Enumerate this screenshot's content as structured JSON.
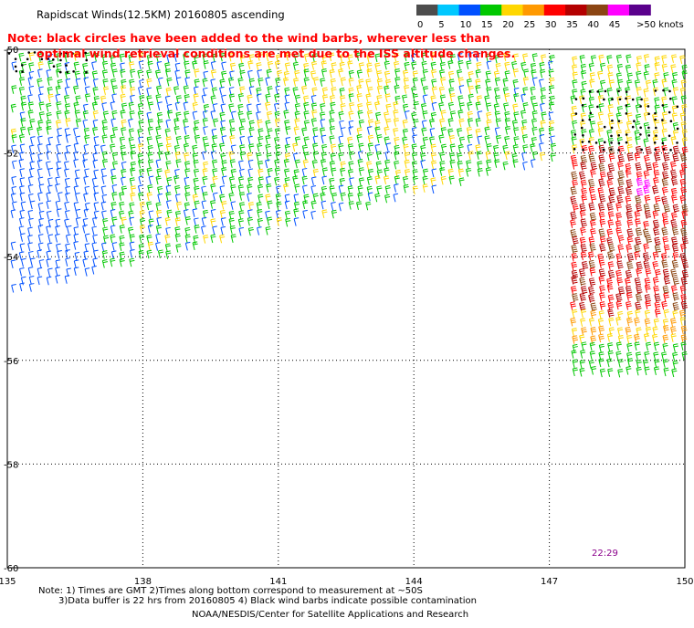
{
  "header": {
    "title": "Rapidscat Winds(12.5KM) 20160805 ascending",
    "color_scale": {
      "labels": [
        "0",
        "5",
        "10",
        "15",
        "20",
        "25",
        "30",
        "35",
        "40",
        "45",
        ">50 knots"
      ],
      "colors": [
        "#4d4d4d",
        "#00c8ff",
        "#0050ff",
        "#00c800",
        "#ffd700",
        "#ff9900",
        "#ff0000",
        "#b40000",
        "#8b4513",
        "#ff00ff",
        "#5a008c"
      ]
    }
  },
  "note": {
    "line1": "Note: black circles have been added to the wind barbs, wherever less than",
    "line2": "optimal wind retrieval conditions are met due to the ISS altitude changes."
  },
  "map": {
    "lon_range": [
      135,
      150
    ],
    "lat_range": [
      -60,
      -50
    ],
    "x_ticks": [
      "135",
      "138",
      "141",
      "144",
      "147",
      "150"
    ],
    "y_ticks": [
      "-50",
      "-52",
      "-54",
      "-56",
      "-58",
      "-60"
    ],
    "time_label": "22:29",
    "time_color": "#8b008b"
  },
  "footer": {
    "line1": "Note: 1) Times are GMT 2)Times along bottom correspond to measurement at ~50S",
    "line2": "3)Data buffer is 22 hrs from 20160805 4) Black wind barbs indicate possible contamination",
    "credit": "NOAA/NESDIS/Center for Satellite Applications and Research"
  }
}
